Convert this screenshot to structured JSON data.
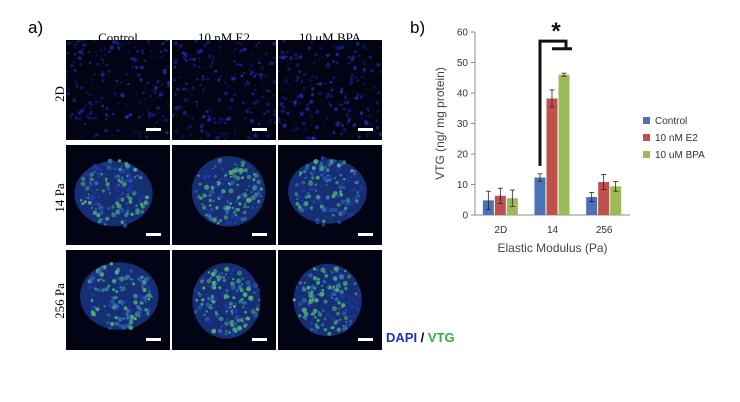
{
  "figure": {
    "panel_a": "a)",
    "panel_b": "b)",
    "columns": [
      "Control",
      "10 nM E2",
      "10 μM BPA"
    ],
    "rows": [
      "2D",
      "14 Pa",
      "256 Pa"
    ],
    "stain_dapi": "DAPI",
    "stain_sep": " / ",
    "stain_vtg": "VTG",
    "colors": {
      "dapi": "#1f30c8",
      "vtg": "#2fae4a",
      "tile_bg": "#020414"
    }
  },
  "chart_data": {
    "type": "bar",
    "categories": [
      "2D",
      "14",
      "256"
    ],
    "series": [
      {
        "name": "Control",
        "color": "#4a72b8",
        "values": [
          4.8,
          12.3,
          5.9
        ],
        "errors": [
          3.0,
          1.2,
          1.5
        ]
      },
      {
        "name": "10 nM E2",
        "color": "#c0504d",
        "values": [
          6.3,
          38.2,
          10.8
        ],
        "errors": [
          2.5,
          2.8,
          2.5
        ]
      },
      {
        "name": "10 uM BPA",
        "color": "#9bbb59",
        "values": [
          5.5,
          46.0,
          9.4
        ],
        "errors": [
          2.7,
          0.5,
          1.6
        ]
      }
    ],
    "xlabel": "Elastic Modulus (Pa)",
    "ylabel": "VTG (ng/ mg protein)",
    "ylim": [
      0,
      60
    ],
    "yticks": [
      0,
      10,
      20,
      30,
      40,
      50,
      60
    ],
    "legend_position": "right",
    "grid": false,
    "annotation": "*"
  }
}
